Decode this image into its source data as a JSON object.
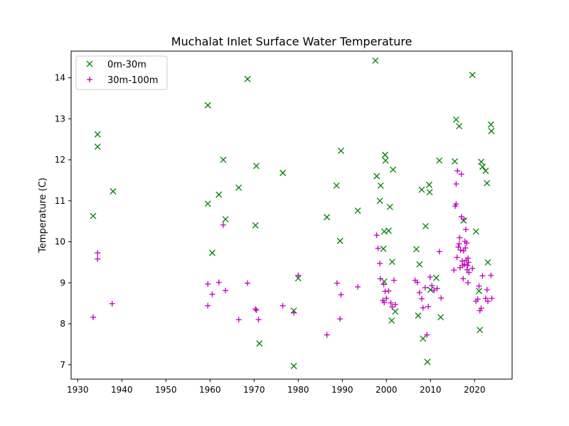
{
  "chart_data": {
    "type": "scatter",
    "title": "Muchalat Inlet Surface Water Temperature",
    "xlabel": "",
    "ylabel": "Temperature (C)",
    "xlim": [
      1928.5,
      2028.5
    ],
    "ylim": [
      6.65,
      14.65
    ],
    "xticks": [
      1930,
      1940,
      1950,
      1960,
      1970,
      1980,
      1990,
      2000,
      2010,
      2020
    ],
    "yticks": [
      7,
      8,
      9,
      10,
      11,
      12,
      13,
      14
    ],
    "legend_position": "upper-left",
    "series": [
      {
        "name": "0m-30m",
        "marker": "x",
        "color": "#008000",
        "points": [
          [
            1933.5,
            10.63
          ],
          [
            1934.5,
            12.62
          ],
          [
            1934.5,
            12.32
          ],
          [
            1938,
            11.23
          ],
          [
            1959.5,
            13.33
          ],
          [
            1959.5,
            10.93
          ],
          [
            1960.5,
            9.73
          ],
          [
            1962,
            11.15
          ],
          [
            1963,
            12.0
          ],
          [
            1963.5,
            10.55
          ],
          [
            1966.5,
            11.32
          ],
          [
            1968.5,
            13.97
          ],
          [
            1970.3,
            10.4
          ],
          [
            1970.5,
            11.85
          ],
          [
            1971.2,
            7.52
          ],
          [
            1976.5,
            11.68
          ],
          [
            1979,
            8.32
          ],
          [
            1979,
            6.97
          ],
          [
            1980,
            9.11
          ],
          [
            1986.5,
            10.6
          ],
          [
            1988.7,
            11.37
          ],
          [
            1989.5,
            10.02
          ],
          [
            1989.7,
            12.22
          ],
          [
            1993.5,
            10.76
          ],
          [
            1997.5,
            14.42
          ],
          [
            1997.8,
            11.6
          ],
          [
            1998.5,
            11.0
          ],
          [
            1998.7,
            11.37
          ],
          [
            1999.3,
            9.83
          ],
          [
            1999.5,
            10.25
          ],
          [
            1999.5,
            9.03
          ],
          [
            1999.7,
            12.12
          ],
          [
            1999.8,
            11.98
          ],
          [
            2000.5,
            10.27
          ],
          [
            2000.8,
            10.85
          ],
          [
            2001.3,
            9.51
          ],
          [
            2001.5,
            11.76
          ],
          [
            2001.2,
            8.08
          ],
          [
            2002,
            8.3
          ],
          [
            2006.8,
            9.82
          ],
          [
            2007.2,
            8.2
          ],
          [
            2007.5,
            9.45
          ],
          [
            2008,
            11.27
          ],
          [
            2008.3,
            7.64
          ],
          [
            2008.9,
            10.38
          ],
          [
            2009.3,
            7.07
          ],
          [
            2009.7,
            11.39
          ],
          [
            2009.8,
            11.21
          ],
          [
            2010,
            8.83
          ],
          [
            2011.3,
            9.12
          ],
          [
            2012,
            11.98
          ],
          [
            2012.3,
            8.16
          ],
          [
            2015.5,
            11.96
          ],
          [
            2015.8,
            12.98
          ],
          [
            2016.5,
            12.82
          ],
          [
            2017.5,
            10.52
          ],
          [
            2019.5,
            14.07
          ],
          [
            2020.3,
            10.25
          ],
          [
            2021,
            8.8
          ],
          [
            2021.2,
            7.85
          ],
          [
            2021.5,
            11.95
          ],
          [
            2021.8,
            11.83
          ],
          [
            2022.5,
            11.73
          ],
          [
            2022.8,
            11.43
          ],
          [
            2023,
            9.5
          ],
          [
            2023.7,
            12.86
          ],
          [
            2023.8,
            12.7
          ]
        ]
      },
      {
        "name": "30m-100m",
        "marker": "+",
        "color": "#bf00bf",
        "points": [
          [
            1933.5,
            8.16
          ],
          [
            1934.5,
            9.73
          ],
          [
            1934.5,
            9.58
          ],
          [
            1937.8,
            8.49
          ],
          [
            1959.5,
            8.97
          ],
          [
            1959.5,
            8.44
          ],
          [
            1960.5,
            8.72
          ],
          [
            1962,
            9.01
          ],
          [
            1963,
            10.41
          ],
          [
            1963.5,
            8.81
          ],
          [
            1966.5,
            8.1
          ],
          [
            1968.5,
            8.99
          ],
          [
            1970.3,
            8.36
          ],
          [
            1970.5,
            8.33
          ],
          [
            1971,
            8.1
          ],
          [
            1976.5,
            8.44
          ],
          [
            1979,
            8.27
          ],
          [
            1980,
            9.18
          ],
          [
            1986.5,
            7.73
          ],
          [
            1988.8,
            8.99
          ],
          [
            1989.5,
            8.12
          ],
          [
            1989.7,
            8.71
          ],
          [
            1993.5,
            8.9
          ],
          [
            1997.8,
            10.16
          ],
          [
            1998.1,
            9.84
          ],
          [
            1998.5,
            9.47
          ],
          [
            1998.6,
            9.1
          ],
          [
            1999.2,
            8.57
          ],
          [
            1999.4,
            8.96
          ],
          [
            1999.5,
            8.52
          ],
          [
            1999.7,
            8.79
          ],
          [
            2000,
            8.62
          ],
          [
            2000.5,
            8.8
          ],
          [
            2001,
            8.51
          ],
          [
            2001.3,
            8.41
          ],
          [
            2001.7,
            9.06
          ],
          [
            2002,
            8.47
          ],
          [
            2006.5,
            9.06
          ],
          [
            2007,
            9.01
          ],
          [
            2007.5,
            8.76
          ],
          [
            2008,
            8.61
          ],
          [
            2008.3,
            8.39
          ],
          [
            2008.8,
            8.88
          ],
          [
            2009.2,
            7.73
          ],
          [
            2009.5,
            8.42
          ],
          [
            2009.9,
            9.14
          ],
          [
            2010.3,
            8.93
          ],
          [
            2010.8,
            8.82
          ],
          [
            2011.5,
            8.86
          ],
          [
            2012,
            9.76
          ],
          [
            2012.4,
            8.63
          ],
          [
            2015.3,
            9.31
          ],
          [
            2015.6,
            10.87
          ],
          [
            2015.8,
            10.92
          ],
          [
            2015.8,
            11.41
          ],
          [
            2016,
            9.62
          ],
          [
            2016.1,
            11.73
          ],
          [
            2016.3,
            9.87
          ],
          [
            2016.5,
            9.95
          ],
          [
            2016.6,
            10.1
          ],
          [
            2016.7,
            9.37
          ],
          [
            2016.8,
            9.8
          ],
          [
            2017,
            10.61
          ],
          [
            2017,
            11.65
          ],
          [
            2017.2,
            9.53
          ],
          [
            2017.3,
            9.42
          ],
          [
            2017.4,
            9.1
          ],
          [
            2017.5,
            9.78
          ],
          [
            2017.6,
            10.55
          ],
          [
            2017.7,
            9.45
          ],
          [
            2017.8,
            10.01
          ],
          [
            2017.9,
            9.85
          ],
          [
            2018,
            10.3
          ],
          [
            2018.1,
            9.55
          ],
          [
            2018.2,
            9.97
          ],
          [
            2018.3,
            9.32
          ],
          [
            2018.4,
            9.42
          ],
          [
            2018.5,
            9.6
          ],
          [
            2018.5,
            9.0
          ],
          [
            2018.6,
            9.5
          ],
          [
            2018.7,
            9.25
          ],
          [
            2019.5,
            9.35
          ],
          [
            2020.3,
            8.55
          ],
          [
            2020.7,
            8.6
          ],
          [
            2021,
            8.92
          ],
          [
            2021.2,
            8.32
          ],
          [
            2021.5,
            8.38
          ],
          [
            2021.8,
            9.17
          ],
          [
            2022.5,
            8.62
          ],
          [
            2022.8,
            8.83
          ],
          [
            2023,
            8.55
          ],
          [
            2023.7,
            9.18
          ],
          [
            2023.9,
            8.62
          ]
        ]
      }
    ]
  }
}
